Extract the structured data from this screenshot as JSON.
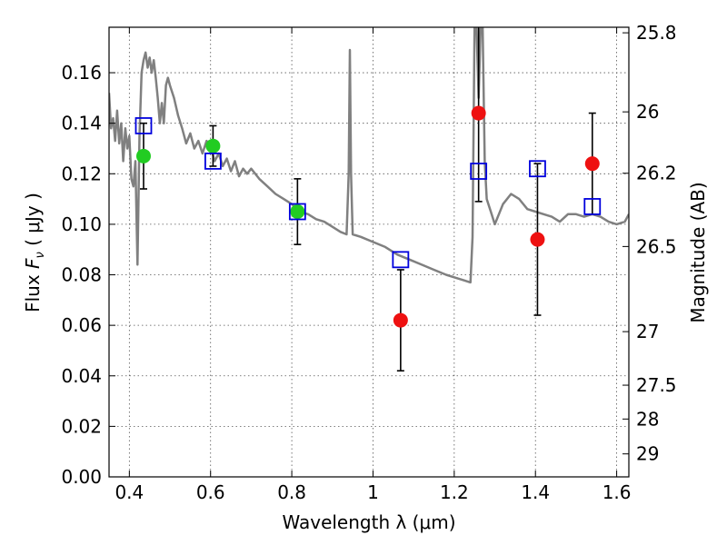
{
  "chart_data": {
    "type": "scatter",
    "xlabel": "Wavelength  λ (μm)",
    "ylabel": "Flux  F_ν  ( μJy )",
    "ylabel_parts": {
      "prefix": "Flux  ",
      "symbol": "F",
      "subscript": "ν",
      "suffix": "  ( μJy )"
    },
    "ylabel_right": "Magnitude (AB)",
    "xlim": [
      0.35,
      1.63
    ],
    "ylim": [
      0.0,
      0.178
    ],
    "grid": true,
    "x_ticks": [
      0.4,
      0.6,
      0.8,
      1.0,
      1.2,
      1.4,
      1.6
    ],
    "x_tick_labels": [
      "0.4",
      "0.6",
      "0.8",
      "1",
      "1.2",
      "1.4",
      "1.6"
    ],
    "y_ticks": [
      0.0,
      0.02,
      0.04,
      0.06,
      0.08,
      0.1,
      0.12,
      0.14,
      0.16
    ],
    "y_tick_labels": [
      "0.00",
      "0.02",
      "0.04",
      "0.06",
      "0.08",
      "0.10",
      "0.12",
      "0.14",
      "0.16"
    ],
    "right_ticks": [
      {
        "label": "25.8",
        "flux": 0.1758
      },
      {
        "label": "26",
        "flux": 0.1445
      },
      {
        "label": "26.2",
        "flux": 0.1202
      },
      {
        "label": "26.5",
        "flux": 0.0912
      },
      {
        "label": "27",
        "flux": 0.0575
      },
      {
        "label": "27.5",
        "flux": 0.0363
      },
      {
        "label": "28",
        "flux": 0.0229
      },
      {
        "label": "29",
        "flux": 0.0091
      }
    ],
    "colors": {
      "model": "#808080",
      "detected": "#22cc22",
      "low_snr": "#ee1111",
      "model_photometry": "#0000dd",
      "errorbar": "#000000"
    },
    "series": [
      {
        "kind": "circle",
        "color_role": "detected",
        "points": [
          {
            "x": 0.435,
            "y": 0.127,
            "err": 0.013
          },
          {
            "x": 0.606,
            "y": 0.131,
            "err": 0.008
          },
          {
            "x": 0.814,
            "y": 0.105,
            "err": 0.013
          }
        ]
      },
      {
        "kind": "circle",
        "color_role": "low_snr",
        "points": [
          {
            "x": 1.068,
            "y": 0.062,
            "err": 0.02
          },
          {
            "x": 1.26,
            "y": 0.144,
            "err": 0.035
          },
          {
            "x": 1.405,
            "y": 0.094,
            "err": 0.03
          },
          {
            "x": 1.54,
            "y": 0.124,
            "err": 0.02
          }
        ]
      },
      {
        "kind": "open-square",
        "color_role": "model_photometry",
        "points": [
          {
            "x": 0.435,
            "y": 0.139
          },
          {
            "x": 0.606,
            "y": 0.125
          },
          {
            "x": 0.814,
            "y": 0.105
          },
          {
            "x": 1.068,
            "y": 0.086
          },
          {
            "x": 1.26,
            "y": 0.121
          },
          {
            "x": 1.405,
            "y": 0.122
          },
          {
            "x": 1.54,
            "y": 0.107
          }
        ]
      },
      {
        "kind": "line",
        "color_role": "model",
        "points": [
          [
            0.35,
            0.152
          ],
          [
            0.355,
            0.138
          ],
          [
            0.36,
            0.142
          ],
          [
            0.365,
            0.133
          ],
          [
            0.37,
            0.145
          ],
          [
            0.375,
            0.132
          ],
          [
            0.38,
            0.14
          ],
          [
            0.385,
            0.125
          ],
          [
            0.39,
            0.138
          ],
          [
            0.395,
            0.13
          ],
          [
            0.4,
            0.135
          ],
          [
            0.405,
            0.118
          ],
          [
            0.41,
            0.115
          ],
          [
            0.415,
            0.125
          ],
          [
            0.42,
            0.084
          ],
          [
            0.425,
            0.135
          ],
          [
            0.43,
            0.16
          ],
          [
            0.435,
            0.165
          ],
          [
            0.44,
            0.168
          ],
          [
            0.445,
            0.162
          ],
          [
            0.45,
            0.166
          ],
          [
            0.455,
            0.16
          ],
          [
            0.46,
            0.165
          ],
          [
            0.465,
            0.158
          ],
          [
            0.47,
            0.15
          ],
          [
            0.475,
            0.14
          ],
          [
            0.48,
            0.148
          ],
          [
            0.485,
            0.14
          ],
          [
            0.49,
            0.155
          ],
          [
            0.495,
            0.158
          ],
          [
            0.5,
            0.155
          ],
          [
            0.51,
            0.15
          ],
          [
            0.52,
            0.143
          ],
          [
            0.53,
            0.138
          ],
          [
            0.54,
            0.132
          ],
          [
            0.55,
            0.136
          ],
          [
            0.56,
            0.13
          ],
          [
            0.57,
            0.133
          ],
          [
            0.58,
            0.128
          ],
          [
            0.59,
            0.133
          ],
          [
            0.6,
            0.131
          ],
          [
            0.61,
            0.125
          ],
          [
            0.62,
            0.128
          ],
          [
            0.63,
            0.123
          ],
          [
            0.64,
            0.126
          ],
          [
            0.65,
            0.121
          ],
          [
            0.66,
            0.125
          ],
          [
            0.67,
            0.119
          ],
          [
            0.68,
            0.122
          ],
          [
            0.69,
            0.12
          ],
          [
            0.7,
            0.122
          ],
          [
            0.72,
            0.118
          ],
          [
            0.74,
            0.115
          ],
          [
            0.76,
            0.112
          ],
          [
            0.78,
            0.11
          ],
          [
            0.8,
            0.108
          ],
          [
            0.82,
            0.105
          ],
          [
            0.84,
            0.104
          ],
          [
            0.86,
            0.102
          ],
          [
            0.88,
            0.101
          ],
          [
            0.9,
            0.099
          ],
          [
            0.92,
            0.097
          ],
          [
            0.935,
            0.096
          ],
          [
            0.94,
            0.12
          ],
          [
            0.943,
            0.169
          ],
          [
            0.946,
            0.12
          ],
          [
            0.95,
            0.096
          ],
          [
            0.97,
            0.095
          ],
          [
            1.0,
            0.093
          ],
          [
            1.03,
            0.091
          ],
          [
            1.06,
            0.088
          ],
          [
            1.09,
            0.086
          ],
          [
            1.12,
            0.084
          ],
          [
            1.15,
            0.082
          ],
          [
            1.18,
            0.08
          ],
          [
            1.2,
            0.079
          ],
          [
            1.22,
            0.078
          ],
          [
            1.24,
            0.077
          ],
          [
            1.245,
            0.095
          ],
          [
            1.25,
            0.178
          ],
          [
            1.255,
            0.178
          ],
          [
            1.26,
            0.15
          ],
          [
            1.265,
            0.178
          ],
          [
            1.27,
            0.178
          ],
          [
            1.275,
            0.125
          ],
          [
            1.28,
            0.11
          ],
          [
            1.29,
            0.105
          ],
          [
            1.3,
            0.1
          ],
          [
            1.31,
            0.104
          ],
          [
            1.32,
            0.108
          ],
          [
            1.34,
            0.112
          ],
          [
            1.36,
            0.11
          ],
          [
            1.38,
            0.106
          ],
          [
            1.4,
            0.105
          ],
          [
            1.42,
            0.104
          ],
          [
            1.44,
            0.103
          ],
          [
            1.46,
            0.101
          ],
          [
            1.48,
            0.104
          ],
          [
            1.5,
            0.104
          ],
          [
            1.52,
            0.103
          ],
          [
            1.54,
            0.104
          ],
          [
            1.56,
            0.103
          ],
          [
            1.58,
            0.101
          ],
          [
            1.6,
            0.1
          ],
          [
            1.62,
            0.101
          ],
          [
            1.63,
            0.104
          ]
        ]
      }
    ]
  }
}
